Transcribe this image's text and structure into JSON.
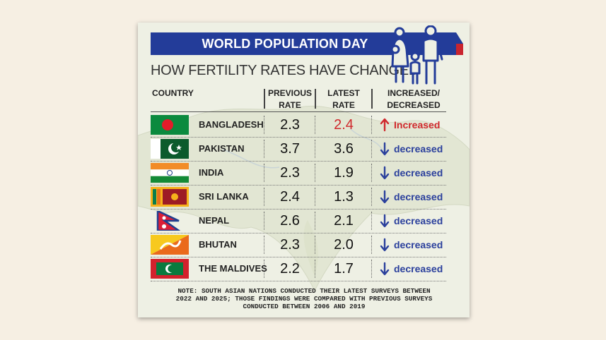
{
  "banner": {
    "title": "WORLD POPULATION DAY"
  },
  "subtitle": "HOW FERTILITY RATES HAVE CHANGED",
  "colors": {
    "banner": "#233c99",
    "banner_tip": "#c9252f",
    "increase": "#d0282c",
    "decrease": "#2a3f9c",
    "text": "#222222"
  },
  "icons": {
    "family": "family-icon",
    "increase": "arrow-up-icon",
    "decrease": "arrow-down-icon"
  },
  "chart_data": {
    "type": "table",
    "columns": {
      "country": "COUNTRY",
      "previous": [
        "PREVIOUS",
        "RATE"
      ],
      "latest": [
        "LATEST",
        "RATE"
      ],
      "change": [
        "INCREASED/",
        "DECREASED"
      ]
    },
    "rows": [
      {
        "country": "BANGLADESH",
        "flag": "bangladesh",
        "previous": "2.3",
        "latest": "2.4",
        "change": "increased",
        "label": "Increased"
      },
      {
        "country": "PAKISTAN",
        "flag": "pakistan",
        "previous": "3.7",
        "latest": "3.6",
        "change": "decreased",
        "label": "decreased"
      },
      {
        "country": "INDIA",
        "flag": "india",
        "previous": "2.3",
        "latest": "1.9",
        "change": "decreased",
        "label": "decreased"
      },
      {
        "country": "SRI LANKA",
        "flag": "sri-lanka",
        "previous": "2.4",
        "latest": "1.3",
        "change": "decreased",
        "label": "decreased"
      },
      {
        "country": "NEPAL",
        "flag": "nepal",
        "previous": "2.6",
        "latest": "2.1",
        "change": "decreased",
        "label": "decreased"
      },
      {
        "country": "BHUTAN",
        "flag": "bhutan",
        "previous": "2.3",
        "latest": "2.0",
        "change": "decreased",
        "label": "decreased"
      },
      {
        "country": "THE MALDIVES",
        "flag": "maldives",
        "previous": "2.2",
        "latest": "1.7",
        "change": "decreased",
        "label": "decreased"
      }
    ]
  },
  "note": {
    "lines": [
      "NOTE: SOUTH ASIAN NATIONS CONDUCTED THEIR LATEST SURVEYS BETWEEN",
      "2022 AND 2025; THOSE FINDINGS WERE COMPARED WITH PREVIOUS SURVEYS",
      "CONDUCTED BETWEEN 2006 AND 2019"
    ]
  }
}
